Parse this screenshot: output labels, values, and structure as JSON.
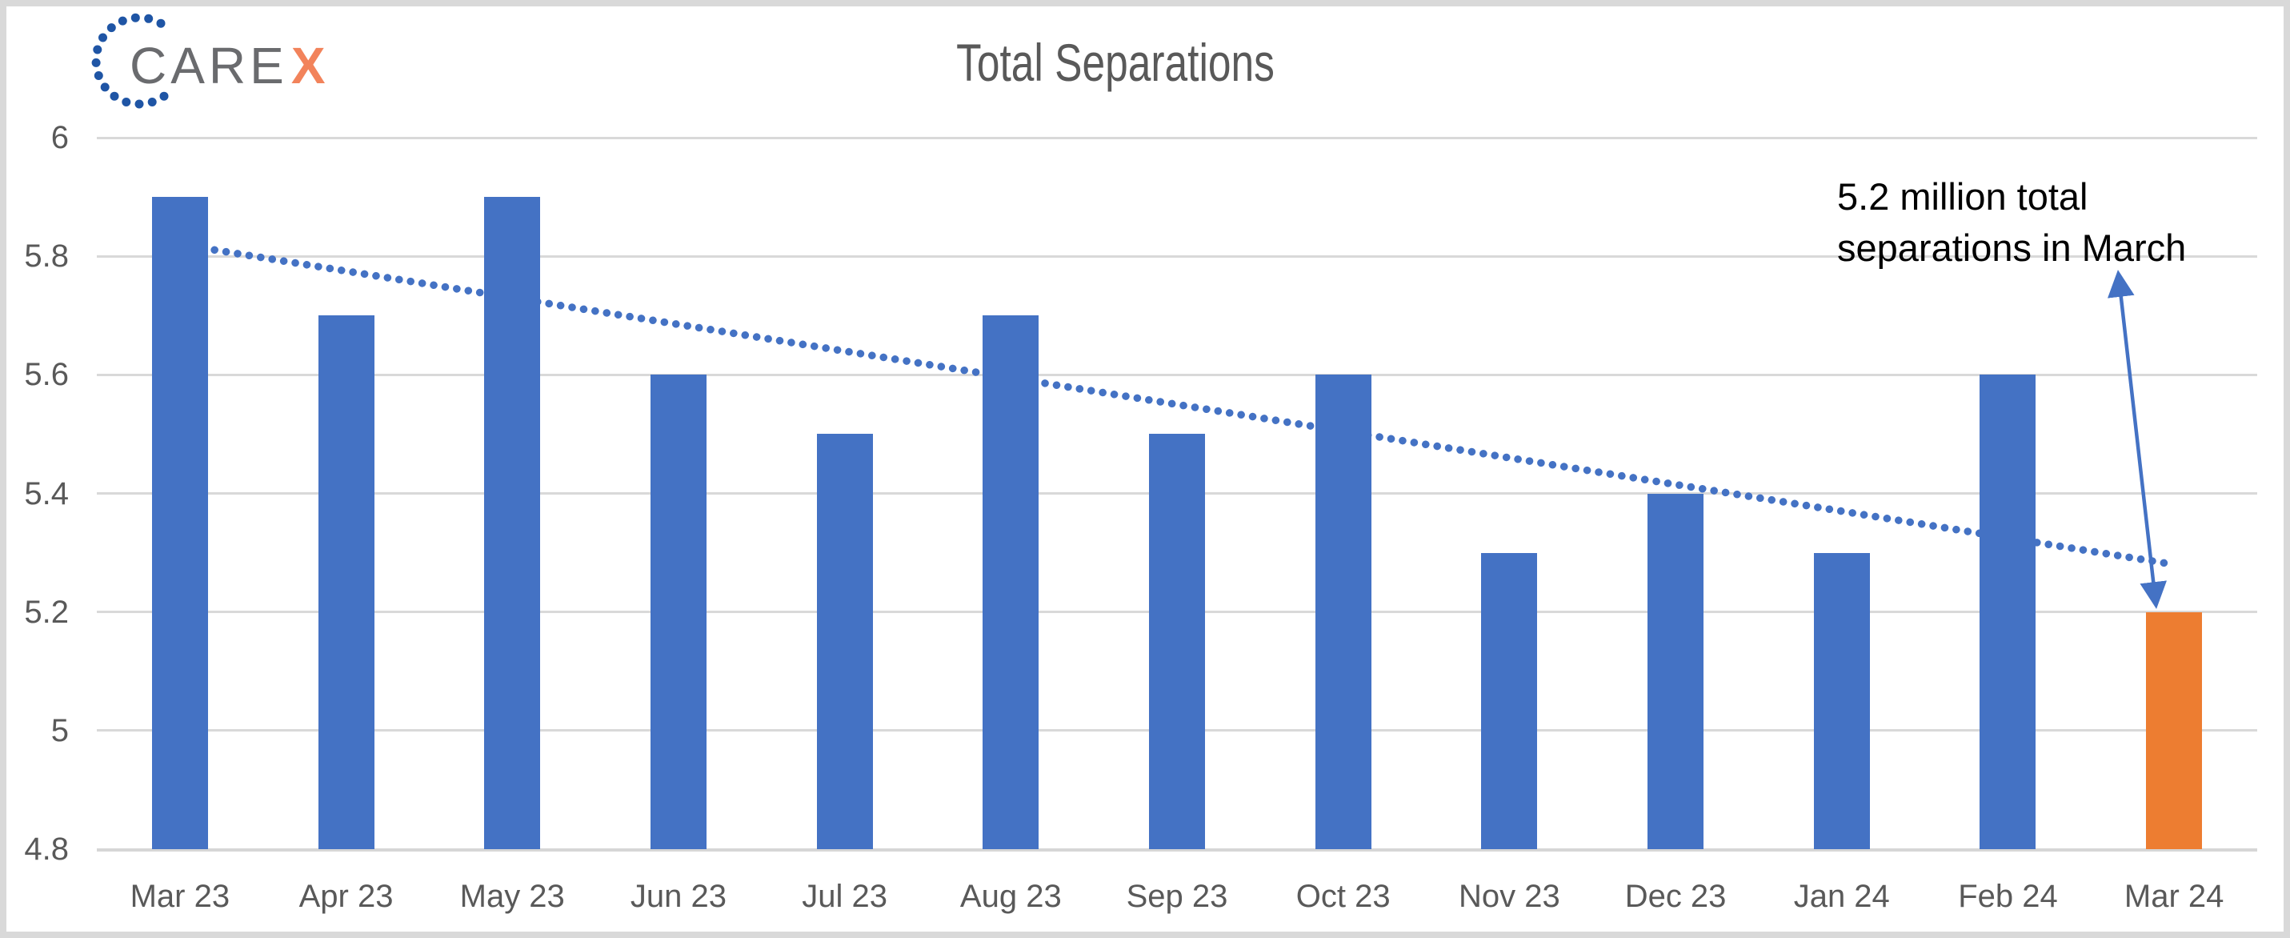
{
  "logo": {
    "text_main": "CARE",
    "text_accent": "X",
    "colors": {
      "text": "#6A6B6E",
      "accent": "#F2835B",
      "dots": "#1F55A5"
    }
  },
  "chart_data": {
    "type": "bar",
    "title": "Total Separations",
    "categories": [
      "Mar 23",
      "Apr 23",
      "May 23",
      "Jun 23",
      "Jul 23",
      "Aug 23",
      "Sep 23",
      "Oct 23",
      "Nov 23",
      "Dec 23",
      "Jan 24",
      "Feb 24",
      "Mar 24"
    ],
    "values": [
      5.9,
      5.7,
      5.9,
      5.6,
      5.5,
      5.7,
      5.5,
      5.6,
      5.3,
      5.4,
      5.3,
      5.6,
      5.2
    ],
    "highlight_index": 12,
    "ylim": [
      4.8,
      6
    ],
    "yticks": [
      "6",
      "5.8",
      "5.6",
      "5.4",
      "5.2",
      "5",
      "4.8"
    ],
    "grid": "horizontal",
    "legend": "none",
    "trendline": {
      "style": "dotted",
      "start_value": 5.82,
      "end_value": 5.28
    },
    "annotation": {
      "line1": "5.2 million total",
      "line2": "separations in March"
    },
    "colors": {
      "bar": "#4472C4",
      "bar_highlight": "#ED7D31",
      "trendline": "#4472C4",
      "arrow": "#4472C4",
      "gridline": "#D9D9D9",
      "axis_line": "#D6D6D6",
      "title": "#595959",
      "ticks": "#595959",
      "annotation": "#000000"
    }
  }
}
